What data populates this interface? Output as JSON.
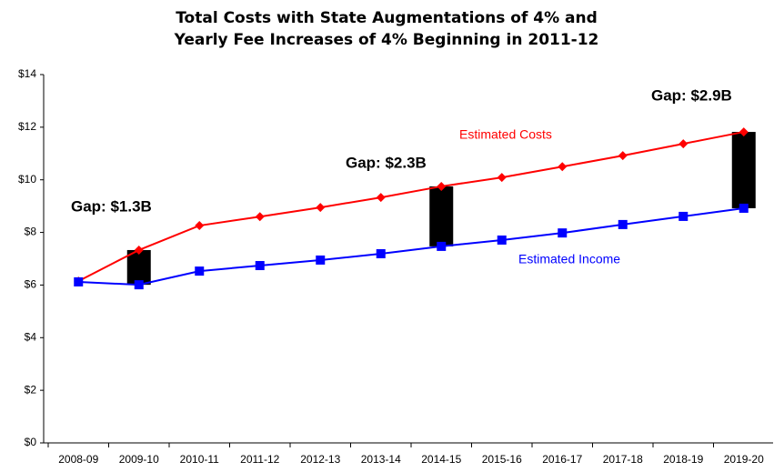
{
  "chart_data": {
    "type": "line",
    "title": [
      "Total Costs with State Augmentations of 4% and",
      "Yearly Fee Increases of 4% Beginning in 2011-12"
    ],
    "categories": [
      "2008-09",
      "2009-10",
      "2010-11",
      "2011-12",
      "2012-13",
      "2013-14",
      "2014-15",
      "2015-16",
      "2016-17",
      "2017-18",
      "2018-19",
      "2019-20"
    ],
    "series": [
      {
        "name": "Estimated Costs",
        "color": "#ff0000",
        "marker": "diamond",
        "values": [
          6.15,
          7.33,
          8.26,
          8.6,
          8.95,
          9.33,
          9.75,
          10.09,
          10.5,
          10.92,
          11.37,
          11.82
        ]
      },
      {
        "name": "Estimated Income",
        "color": "#0000ff",
        "marker": "square",
        "values": [
          6.12,
          6.01,
          6.53,
          6.74,
          6.95,
          7.19,
          7.47,
          7.71,
          7.98,
          8.3,
          8.61,
          8.92
        ]
      }
    ],
    "annotations": [
      {
        "text": "Gap:  $1.3B",
        "category": "2009-10"
      },
      {
        "text": "Gap:  $2.3B",
        "category": "2014-15"
      },
      {
        "text": "Gap:  $2.9B",
        "category": "2019-20"
      }
    ],
    "gap_color": "#000000",
    "ylim": [
      0,
      14
    ],
    "yticks": [
      {
        "value": 0,
        "label": "$0"
      },
      {
        "value": 2,
        "label": "$2"
      },
      {
        "value": 4,
        "label": "$4"
      },
      {
        "value": 6,
        "label": "$6"
      },
      {
        "value": 8,
        "label": "$8"
      },
      {
        "value": 10,
        "label": "$10"
      },
      {
        "value": 12,
        "label": "$12"
      },
      {
        "value": 14,
        "label": "$14"
      }
    ],
    "grid": false
  }
}
